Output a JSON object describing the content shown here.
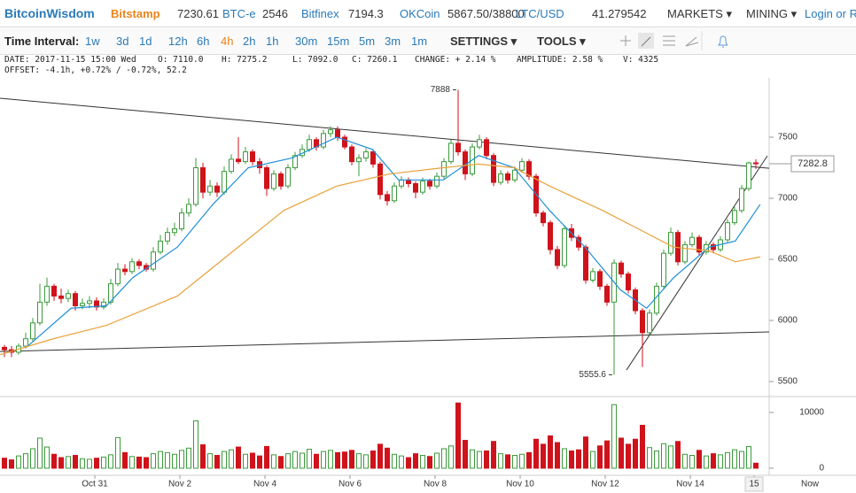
{
  "nav": {
    "logo": "BitcoinWisdom",
    "exchanges": [
      {
        "name": "Bitstamp",
        "price": "7230.61"
      },
      {
        "name": "BTC-e",
        "price": "2546"
      },
      {
        "name": "Bitfinex",
        "price": "7194.3"
      },
      {
        "name": "OKCoin",
        "price": "5867.50/38800"
      },
      {
        "name": "LTC/USD",
        "price": "41.279542"
      }
    ],
    "menus": [
      "MARKETS",
      "MINING"
    ],
    "login": "Login or Re"
  },
  "toolbar": {
    "label": "Time Interval:",
    "intervals": [
      "1w",
      "3d",
      "1d",
      "12h",
      "6h",
      "4h",
      "2h",
      "1h",
      "30m",
      "15m",
      "5m",
      "3m",
      "1m"
    ],
    "active_interval": "4h",
    "menus": [
      "SETTINGS",
      "TOOLS"
    ]
  },
  "info": {
    "line1": [
      "DATE: 2017-11-15 15:00 Wed",
      "O: 7110.0",
      "H: 7275.2",
      "L: 7092.0",
      "C: 7260.1",
      "CHANGE: + 2.14 %",
      "AMPLITUDE: 2.58 %",
      "V: 4325"
    ],
    "line2": "OFFSET: -4.1h, +0.72% / -0.72%, 52.2"
  },
  "chart_data": {
    "type": "candlestick",
    "up_color": "#3c9a3c",
    "down_color": "#d0121b",
    "xlim": [
      -0.625,
      107.875
    ],
    "ylim": [
      5399,
      7971
    ],
    "yticks": [
      5500,
      6000,
      6500,
      7000,
      7500
    ],
    "vlim": [
      -1270,
      12540
    ],
    "vticks": [
      0,
      10000
    ],
    "xticks": [
      {
        "value": 12.75,
        "label": "Oct 31"
      },
      {
        "value": 24.75,
        "label": "Nov 2"
      },
      {
        "value": 36.75,
        "label": "Nov 4"
      },
      {
        "value": 48.75,
        "label": "Nov 6"
      },
      {
        "value": 60.75,
        "label": "Nov 8"
      },
      {
        "value": 72.75,
        "label": "Nov 10"
      },
      {
        "value": 84.75,
        "label": "Nov 12"
      },
      {
        "value": 96.75,
        "label": "Nov 14"
      },
      {
        "value": 105.75,
        "label": "15"
      }
    ],
    "now_label": "Now",
    "candles": [
      [
        5780,
        5800,
        5700,
        5760
      ],
      [
        5760,
        5790,
        5700,
        5740
      ],
      [
        5740,
        5810,
        5720,
        5790
      ],
      [
        5790,
        5900,
        5770,
        5850
      ],
      [
        5850,
        6020,
        5830,
        5980
      ],
      [
        5980,
        6300,
        5960,
        6150
      ],
      [
        6150,
        6350,
        6120,
        6280
      ],
      [
        6280,
        6300,
        6160,
        6200
      ],
      [
        6200,
        6260,
        6140,
        6180
      ],
      [
        6180,
        6250,
        6150,
        6220
      ],
      [
        6220,
        6240,
        6080,
        6120
      ],
      [
        6120,
        6180,
        6090,
        6140
      ],
      [
        6140,
        6200,
        6100,
        6160
      ],
      [
        6160,
        6190,
        6080,
        6110
      ],
      [
        6110,
        6180,
        6090,
        6150
      ],
      [
        6150,
        6340,
        6130,
        6300
      ],
      [
        6300,
        6470,
        6280,
        6420
      ],
      [
        6420,
        6460,
        6370,
        6400
      ],
      [
        6400,
        6510,
        6380,
        6480
      ],
      [
        6480,
        6500,
        6420,
        6450
      ],
      [
        6450,
        6470,
        6400,
        6420
      ],
      [
        6420,
        6600,
        6400,
        6560
      ],
      [
        6560,
        6700,
        6540,
        6650
      ],
      [
        6650,
        6760,
        6620,
        6720
      ],
      [
        6720,
        6800,
        6690,
        6750
      ],
      [
        6750,
        6920,
        6730,
        6880
      ],
      [
        6880,
        7000,
        6850,
        6950
      ],
      [
        6950,
        7330,
        6930,
        7250
      ],
      [
        7250,
        7290,
        7000,
        7050
      ],
      [
        7050,
        7150,
        7020,
        7100
      ],
      [
        7100,
        7130,
        7010,
        7050
      ],
      [
        7050,
        7260,
        7030,
        7220
      ],
      [
        7220,
        7360,
        7200,
        7320
      ],
      [
        7320,
        7500,
        7280,
        7300
      ],
      [
        7300,
        7420,
        7280,
        7380
      ],
      [
        7380,
        7400,
        7270,
        7300
      ],
      [
        7300,
        7330,
        7200,
        7250
      ],
      [
        7250,
        7270,
        7020,
        7080
      ],
      [
        7080,
        7230,
        7060,
        7200
      ],
      [
        7200,
        7220,
        7070,
        7100
      ],
      [
        7100,
        7280,
        7080,
        7250
      ],
      [
        7250,
        7380,
        7230,
        7350
      ],
      [
        7350,
        7440,
        7330,
        7400
      ],
      [
        7400,
        7520,
        7380,
        7480
      ],
      [
        7480,
        7500,
        7390,
        7420
      ],
      [
        7420,
        7560,
        7400,
        7530
      ],
      [
        7530,
        7590,
        7500,
        7560
      ],
      [
        7560,
        7590,
        7470,
        7500
      ],
      [
        7500,
        7520,
        7400,
        7420
      ],
      [
        7420,
        7440,
        7270,
        7300
      ],
      [
        7300,
        7360,
        7180,
        7330
      ],
      [
        7330,
        7410,
        7300,
        7380
      ],
      [
        7380,
        7400,
        7250,
        7280
      ],
      [
        7280,
        7300,
        6990,
        7030
      ],
      [
        7030,
        7060,
        6940,
        6980
      ],
      [
        6980,
        7130,
        6960,
        7100
      ],
      [
        7100,
        7180,
        7080,
        7150
      ],
      [
        7150,
        7170,
        7090,
        7120
      ],
      [
        7120,
        7140,
        7000,
        7050
      ],
      [
        7050,
        7170,
        7030,
        7140
      ],
      [
        7140,
        7160,
        7070,
        7100
      ],
      [
        7100,
        7210,
        7080,
        7180
      ],
      [
        7180,
        7330,
        7160,
        7300
      ],
      [
        7300,
        7480,
        7280,
        7450
      ],
      [
        7450,
        7888,
        7350,
        7380
      ],
      [
        7380,
        7400,
        7150,
        7200
      ],
      [
        7200,
        7450,
        7180,
        7420
      ],
      [
        7420,
        7520,
        7400,
        7480
      ],
      [
        7480,
        7500,
        7320,
        7350
      ],
      [
        7350,
        7370,
        7100,
        7130
      ],
      [
        7130,
        7230,
        7110,
        7200
      ],
      [
        7200,
        7220,
        7120,
        7150
      ],
      [
        7150,
        7260,
        7130,
        7230
      ],
      [
        7230,
        7330,
        7210,
        7300
      ],
      [
        7300,
        7320,
        7150,
        7180
      ],
      [
        7180,
        7200,
        6850,
        6880
      ],
      [
        6880,
        6900,
        6770,
        6800
      ],
      [
        6800,
        6820,
        6540,
        6580
      ],
      [
        6580,
        6610,
        6420,
        6450
      ],
      [
        6450,
        6780,
        6430,
        6750
      ],
      [
        6750,
        6790,
        6650,
        6680
      ],
      [
        6680,
        6700,
        6570,
        6600
      ],
      [
        6600,
        6620,
        6300,
        6330
      ],
      [
        6330,
        6430,
        6310,
        6400
      ],
      [
        6400,
        6420,
        6250,
        6280
      ],
      [
        6280,
        6300,
        6120,
        6150
      ],
      [
        6150,
        6500,
        5555.6,
        6470
      ],
      [
        6470,
        6490,
        6350,
        6380
      ],
      [
        6380,
        6400,
        6220,
        6250
      ],
      [
        6250,
        6270,
        6050,
        6080
      ],
      [
        6080,
        6100,
        5620,
        5900
      ],
      [
        5900,
        6090,
        5880,
        6060
      ],
      [
        6060,
        6310,
        6040,
        6280
      ],
      [
        6280,
        6580,
        6260,
        6550
      ],
      [
        6550,
        6760,
        6530,
        6720
      ],
      [
        6720,
        6740,
        6450,
        6480
      ],
      [
        6480,
        6650,
        6460,
        6620
      ],
      [
        6620,
        6720,
        6600,
        6680
      ],
      [
        6680,
        6700,
        6530,
        6560
      ],
      [
        6560,
        6650,
        6540,
        6620
      ],
      [
        6620,
        6640,
        6550,
        6580
      ],
      [
        6580,
        6690,
        6560,
        6660
      ],
      [
        6660,
        6830,
        6640,
        6800
      ],
      [
        6800,
        6930,
        6780,
        6900
      ],
      [
        6900,
        7110,
        6880,
        7080
      ],
      [
        7080,
        7300,
        7060,
        7290
      ],
      [
        7290,
        7320,
        7240,
        7282.8
      ]
    ],
    "volume": [
      1800,
      1500,
      2200,
      2600,
      3500,
      5400,
      3800,
      2500,
      1900,
      2100,
      2300,
      1700,
      1600,
      1800,
      2000,
      2400,
      5500,
      2800,
      2100,
      2000,
      1900,
      2600,
      3000,
      2800,
      2500,
      3200,
      3600,
      8500,
      4200,
      2600,
      2300,
      3000,
      3300,
      3800,
      2500,
      2700,
      2200,
      3900,
      2400,
      2100,
      2600,
      3000,
      2700,
      3400,
      2500,
      3000,
      3200,
      2800,
      2900,
      3200,
      2600,
      2400,
      3100,
      4300,
      3600,
      2500,
      2200,
      1900,
      2600,
      2300,
      2100,
      2700,
      3500,
      4000,
      11700,
      5000,
      3300,
      3000,
      3100,
      4800,
      2600,
      2400,
      2300,
      2500,
      2800,
      5200,
      4300,
      5800,
      4600,
      3500,
      3100,
      3300,
      5600,
      3000,
      4000,
      4900,
      11400,
      5400,
      4300,
      5200,
      7700,
      3700,
      3100,
      4400,
      4000,
      4800,
      2500,
      2300,
      3200,
      2200,
      2600,
      2400,
      2800,
      3300,
      3000,
      3900,
      900
    ],
    "ma_lines": [
      {
        "color": "#1f8fd6",
        "x": [
          3.1,
          9.4,
          14.4,
          18.1,
          24.4,
          29.4,
          34.4,
          40.6,
          46.9,
          51.9,
          55.6,
          61.9,
          66.9,
          71.9,
          76.9,
          81.9,
          86.9,
          90.6,
          94.4,
          99.4,
          103.1,
          106.6
        ],
        "values": [
          5780,
          6100,
          6120,
          6350,
          6600,
          6950,
          7250,
          7330,
          7500,
          7400,
          7150,
          7150,
          7350,
          7250,
          6900,
          6600,
          6250,
          6100,
          6350,
          6600,
          6650,
          6950
        ]
      },
      {
        "color": "#e8a23a",
        "x": [
          -0.6,
          6.9,
          14.4,
          24.4,
          31.9,
          39.4,
          46.9,
          54.4,
          61.9,
          66.9,
          71.9,
          76.9,
          84.4,
          89.4,
          94.4,
          99.4,
          103.1,
          106.6
        ],
        "values": [
          5720,
          5850,
          5960,
          6200,
          6550,
          6900,
          7100,
          7200,
          7250,
          7280,
          7250,
          7100,
          6900,
          6750,
          6600,
          6570,
          6480,
          6520
        ]
      }
    ],
    "trend_lines": [
      {
        "x": [
          -0.625,
          107.875
        ],
        "values": [
          7819,
          7246
        ]
      },
      {
        "x": [
          -0.625,
          107.875
        ],
        "values": [
          5746,
          5906
        ]
      },
      {
        "x": [
          87.75,
          107.625
        ],
        "values": [
          5594,
          7348
        ]
      }
    ]
  }
}
